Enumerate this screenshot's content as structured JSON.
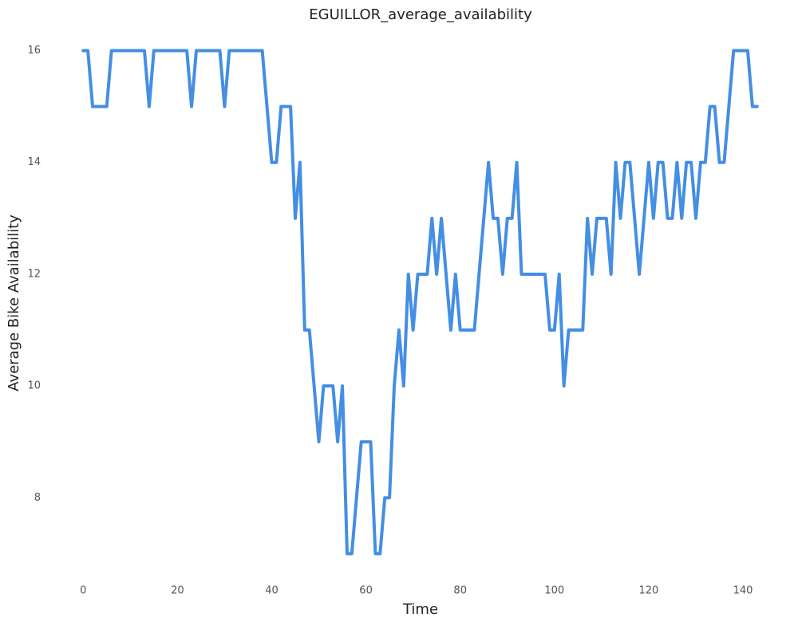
{
  "chart_data": {
    "type": "line",
    "title": "EGUILLOR_average_availability",
    "xlabel": "Time",
    "ylabel": "Average Bike Availability",
    "x": [
      0,
      1,
      2,
      3,
      4,
      5,
      6,
      7,
      8,
      9,
      10,
      11,
      12,
      13,
      14,
      15,
      16,
      17,
      18,
      19,
      20,
      21,
      22,
      23,
      24,
      25,
      26,
      27,
      28,
      29,
      30,
      31,
      32,
      33,
      34,
      35,
      36,
      37,
      38,
      39,
      40,
      41,
      42,
      43,
      44,
      45,
      46,
      47,
      48,
      49,
      50,
      51,
      52,
      53,
      54,
      55,
      56,
      57,
      58,
      59,
      60,
      61,
      62,
      63,
      64,
      65,
      66,
      67,
      68,
      69,
      70,
      71,
      72,
      73,
      74,
      75,
      76,
      77,
      78,
      79,
      80,
      81,
      82,
      83,
      84,
      85,
      86,
      87,
      88,
      89,
      90,
      91,
      92,
      93,
      94,
      95,
      96,
      97,
      98,
      99,
      100,
      101,
      102,
      103,
      104,
      105,
      106,
      107,
      108,
      109,
      110,
      111,
      112,
      113,
      114,
      115,
      116,
      117,
      118,
      119,
      120,
      121,
      122,
      123,
      124,
      125,
      126,
      127,
      128,
      129,
      130,
      131,
      132,
      133,
      134,
      135,
      136,
      137,
      138,
      139,
      140,
      141,
      142,
      143
    ],
    "values": [
      16,
      16,
      15,
      15,
      15,
      15,
      16,
      16,
      16,
      16,
      16,
      16,
      16,
      16,
      15,
      16,
      16,
      16,
      16,
      16,
      16,
      16,
      16,
      15,
      16,
      16,
      16,
      16,
      16,
      16,
      15,
      16,
      16,
      16,
      16,
      16,
      16,
      16,
      16,
      15,
      14,
      14,
      15,
      15,
      15,
      13,
      14,
      11,
      11,
      10,
      9,
      10,
      10,
      10,
      9,
      10,
      7,
      7,
      8,
      9,
      9,
      9,
      7,
      7,
      8,
      8,
      10,
      11,
      10,
      12,
      11,
      12,
      12,
      12,
      13,
      12,
      13,
      12,
      11,
      12,
      11,
      11,
      11,
      11,
      12,
      13,
      14,
      13,
      13,
      12,
      13,
      13,
      14,
      12,
      12,
      12,
      12,
      12,
      12,
      11,
      11,
      12,
      10,
      11,
      11,
      11,
      11,
      13,
      12,
      13,
      13,
      13,
      12,
      14,
      13,
      14,
      14,
      13,
      12,
      13,
      14,
      13,
      14,
      14,
      13,
      13,
      14,
      13,
      14,
      14,
      13,
      14,
      14,
      15,
      15,
      14,
      14,
      15,
      16,
      16,
      16,
      16,
      15,
      15
    ],
    "color": "#448ee4",
    "xlim": [
      -7.15,
      150.15
    ],
    "xticks": [
      0,
      20,
      40,
      60,
      80,
      100,
      120,
      140
    ],
    "ylim": [
      6.55,
      16.45
    ],
    "yticks": [
      8,
      10,
      12,
      14,
      16
    ]
  }
}
